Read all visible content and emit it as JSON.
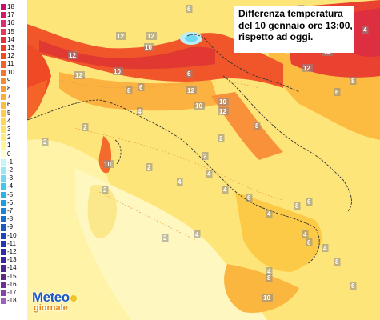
{
  "title": {
    "line1": "Differenza temperatura",
    "line2": "del 10 gennaio ore 13:00,",
    "line3": "rispetto ad oggi."
  },
  "legend": [
    {
      "label": "18",
      "color": "#c8106c"
    },
    {
      "label": "17",
      "color": "#d2186a"
    },
    {
      "label": "16",
      "color": "#dc2d6f"
    },
    {
      "label": "15",
      "color": "#e63a56"
    },
    {
      "label": "14",
      "color": "#e1323f"
    },
    {
      "label": "13",
      "color": "#ec3c24"
    },
    {
      "label": "12",
      "color": "#f04e21"
    },
    {
      "label": "11",
      "color": "#f4622a"
    },
    {
      "label": "10",
      "color": "#f6762e"
    },
    {
      "label": "9",
      "color": "#f88a30"
    },
    {
      "label": "8",
      "color": "#fa9c34"
    },
    {
      "label": "7",
      "color": "#fbae3a"
    },
    {
      "label": "6",
      "color": "#fcbe40"
    },
    {
      "label": "5",
      "color": "#fdcc48"
    },
    {
      "label": "4",
      "color": "#fed852"
    },
    {
      "label": "3",
      "color": "#fee362"
    },
    {
      "label": "2",
      "color": "#ffec78"
    },
    {
      "label": "1",
      "color": "#fff496"
    },
    {
      "label": "0",
      "color": "#ffffd2"
    },
    {
      "label": "-1",
      "color": "#c8f5fa"
    },
    {
      "label": "-2",
      "color": "#9ae8f7"
    },
    {
      "label": "-3",
      "color": "#6fd8f2"
    },
    {
      "label": "-4",
      "color": "#43c6ec"
    },
    {
      "label": "-5",
      "color": "#28b2e6"
    },
    {
      "label": "-6",
      "color": "#1e9ce0"
    },
    {
      "label": "-7",
      "color": "#1c84d8"
    },
    {
      "label": "-8",
      "color": "#1a6ecf"
    },
    {
      "label": "-9",
      "color": "#1a58c6"
    },
    {
      "label": "-10",
      "color": "#1c44bc"
    },
    {
      "label": "-11",
      "color": "#2336b2"
    },
    {
      "label": "-12",
      "color": "#2f2ca8"
    },
    {
      "label": "-13",
      "color": "#3c289c"
    },
    {
      "label": "-14",
      "color": "#4b2890"
    },
    {
      "label": "-15",
      "color": "#5a2a86"
    },
    {
      "label": "-16",
      "color": "#6b3094"
    },
    {
      "label": "-17",
      "color": "#8046a8"
    },
    {
      "label": "-18",
      "color": "#9a62bc"
    }
  ],
  "contour_labels": [
    "12",
    "12",
    "12",
    "10",
    "10",
    "14",
    "12",
    "6",
    "6",
    "8",
    "10",
    "8",
    "10",
    "6",
    "4",
    "8",
    "6",
    "12",
    "12",
    "10",
    "10",
    "4",
    "2",
    "2",
    "2",
    "2",
    "10",
    "2",
    "4",
    "2",
    "4",
    "4",
    "6",
    "4",
    "2",
    "8",
    "6",
    "4",
    "4",
    "4",
    "4",
    "6",
    "8",
    "10",
    "8",
    "6",
    "12",
    "8"
  ],
  "logo": {
    "line1": "Meteo",
    "line2": "giornale"
  }
}
